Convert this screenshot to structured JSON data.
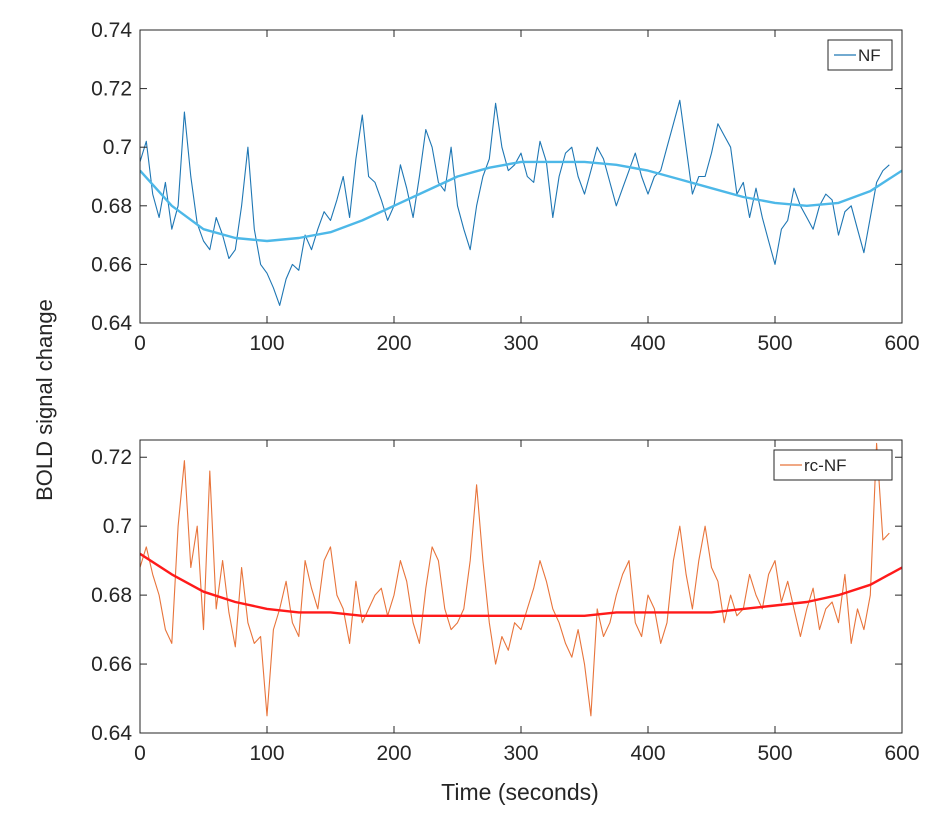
{
  "ylabel": "BOLD signal change",
  "xlabel": "Time (seconds)",
  "chart_data": [
    {
      "type": "line",
      "xlim": [
        0,
        600
      ],
      "ylim": [
        0.64,
        0.74
      ],
      "xticks": [
        0,
        100,
        200,
        300,
        400,
        500,
        600
      ],
      "xtick_labels": [
        "0",
        "100",
        "200",
        "300",
        "400",
        "500",
        "600"
      ],
      "yticks": [
        0.64,
        0.66,
        0.68,
        0.7,
        0.72,
        0.74
      ],
      "ytick_labels": [
        "0.64",
        "0.66",
        "0.68",
        "0.7",
        "0.72",
        "0.74"
      ],
      "legend": {
        "position": "top-right",
        "entries": [
          "NF"
        ]
      },
      "grid": false,
      "series": [
        {
          "name": "NF",
          "color": "#1f77b4",
          "x": [
            0,
            5,
            10,
            15,
            20,
            25,
            30,
            35,
            40,
            45,
            50,
            55,
            60,
            65,
            70,
            75,
            80,
            85,
            90,
            95,
            100,
            105,
            110,
            115,
            120,
            125,
            130,
            135,
            140,
            145,
            150,
            155,
            160,
            165,
            170,
            175,
            180,
            185,
            190,
            195,
            200,
            205,
            210,
            215,
            220,
            225,
            230,
            235,
            240,
            245,
            250,
            255,
            260,
            265,
            270,
            275,
            280,
            285,
            290,
            295,
            300,
            305,
            310,
            315,
            320,
            325,
            330,
            335,
            340,
            345,
            350,
            355,
            360,
            365,
            370,
            375,
            380,
            385,
            390,
            395,
            400,
            405,
            410,
            415,
            420,
            425,
            430,
            435,
            440,
            445,
            450,
            455,
            460,
            465,
            470,
            475,
            480,
            485,
            490,
            495,
            500,
            505,
            510,
            515,
            520,
            525,
            530,
            535,
            540,
            545,
            550,
            555,
            560,
            565,
            570,
            575,
            580,
            585,
            590
          ],
          "y": [
            0.695,
            0.702,
            0.684,
            0.676,
            0.688,
            0.672,
            0.68,
            0.712,
            0.69,
            0.674,
            0.668,
            0.665,
            0.676,
            0.67,
            0.662,
            0.665,
            0.68,
            0.7,
            0.672,
            0.66,
            0.657,
            0.652,
            0.646,
            0.655,
            0.66,
            0.658,
            0.67,
            0.665,
            0.672,
            0.678,
            0.675,
            0.682,
            0.69,
            0.676,
            0.696,
            0.711,
            0.69,
            0.688,
            0.682,
            0.675,
            0.68,
            0.694,
            0.686,
            0.676,
            0.69,
            0.706,
            0.7,
            0.688,
            0.685,
            0.7,
            0.68,
            0.672,
            0.665,
            0.68,
            0.69,
            0.696,
            0.715,
            0.7,
            0.692,
            0.694,
            0.698,
            0.69,
            0.688,
            0.702,
            0.695,
            0.676,
            0.69,
            0.698,
            0.7,
            0.69,
            0.684,
            0.692,
            0.7,
            0.696,
            0.688,
            0.68,
            0.686,
            0.692,
            0.698,
            0.69,
            0.684,
            0.69,
            0.692,
            0.7,
            0.708,
            0.716,
            0.7,
            0.684,
            0.69,
            0.69,
            0.698,
            0.708,
            0.704,
            0.7,
            0.684,
            0.688,
            0.676,
            0.686,
            0.676,
            0.668,
            0.66,
            0.672,
            0.675,
            0.686,
            0.68,
            0.676,
            0.672,
            0.68,
            0.684,
            0.682,
            0.67,
            0.678,
            0.68,
            0.672,
            0.664,
            0.676,
            0.688,
            0.692,
            0.694
          ]
        },
        {
          "name": "",
          "color": "#4db8e8",
          "x": [
            0,
            25,
            50,
            75,
            100,
            125,
            150,
            175,
            200,
            225,
            250,
            275,
            300,
            325,
            350,
            375,
            400,
            425,
            450,
            475,
            500,
            525,
            550,
            575,
            600
          ],
          "y": [
            0.692,
            0.68,
            0.672,
            0.669,
            0.668,
            0.669,
            0.671,
            0.675,
            0.68,
            0.685,
            0.69,
            0.693,
            0.695,
            0.695,
            0.695,
            0.694,
            0.692,
            0.689,
            0.686,
            0.683,
            0.681,
            0.68,
            0.681,
            0.685,
            0.692
          ]
        }
      ]
    },
    {
      "type": "line",
      "xlim": [
        0,
        600
      ],
      "ylim": [
        0.64,
        0.725
      ],
      "xticks": [
        0,
        100,
        200,
        300,
        400,
        500,
        600
      ],
      "xtick_labels": [
        "0",
        "100",
        "200",
        "300",
        "400",
        "500",
        "600"
      ],
      "yticks": [
        0.64,
        0.66,
        0.68,
        0.7,
        0.72
      ],
      "ytick_labels": [
        "0.64",
        "0.66",
        "0.68",
        "0.7",
        "0.72"
      ],
      "legend": {
        "position": "top-right",
        "entries": [
          "rc-NF"
        ]
      },
      "grid": false,
      "series": [
        {
          "name": "rc-NF",
          "color": "#e8743b",
          "x": [
            0,
            5,
            10,
            15,
            20,
            25,
            30,
            35,
            40,
            45,
            50,
            55,
            60,
            65,
            70,
            75,
            80,
            85,
            90,
            95,
            100,
            105,
            110,
            115,
            120,
            125,
            130,
            135,
            140,
            145,
            150,
            155,
            160,
            165,
            170,
            175,
            180,
            185,
            190,
            195,
            200,
            205,
            210,
            215,
            220,
            225,
            230,
            235,
            240,
            245,
            250,
            255,
            260,
            265,
            270,
            275,
            280,
            285,
            290,
            295,
            300,
            305,
            310,
            315,
            320,
            325,
            330,
            335,
            340,
            345,
            350,
            355,
            360,
            365,
            370,
            375,
            380,
            385,
            390,
            395,
            400,
            405,
            410,
            415,
            420,
            425,
            430,
            435,
            440,
            445,
            450,
            455,
            460,
            465,
            470,
            475,
            480,
            485,
            490,
            495,
            500,
            505,
            510,
            515,
            520,
            525,
            530,
            535,
            540,
            545,
            550,
            555,
            560,
            565,
            570,
            575,
            580,
            585,
            590
          ],
          "y": [
            0.688,
            0.694,
            0.686,
            0.68,
            0.67,
            0.666,
            0.7,
            0.719,
            0.688,
            0.7,
            0.67,
            0.716,
            0.676,
            0.69,
            0.675,
            0.665,
            0.688,
            0.672,
            0.666,
            0.668,
            0.645,
            0.67,
            0.676,
            0.684,
            0.672,
            0.668,
            0.69,
            0.682,
            0.676,
            0.69,
            0.694,
            0.68,
            0.676,
            0.666,
            0.684,
            0.672,
            0.676,
            0.68,
            0.682,
            0.674,
            0.68,
            0.69,
            0.684,
            0.672,
            0.666,
            0.682,
            0.694,
            0.69,
            0.676,
            0.67,
            0.672,
            0.676,
            0.69,
            0.712,
            0.69,
            0.672,
            0.66,
            0.668,
            0.664,
            0.672,
            0.67,
            0.676,
            0.682,
            0.69,
            0.684,
            0.676,
            0.672,
            0.666,
            0.662,
            0.67,
            0.66,
            0.645,
            0.676,
            0.668,
            0.672,
            0.68,
            0.686,
            0.69,
            0.672,
            0.668,
            0.68,
            0.676,
            0.666,
            0.672,
            0.69,
            0.7,
            0.686,
            0.676,
            0.69,
            0.7,
            0.688,
            0.684,
            0.672,
            0.68,
            0.674,
            0.676,
            0.686,
            0.68,
            0.676,
            0.686,
            0.69,
            0.678,
            0.684,
            0.676,
            0.668,
            0.676,
            0.682,
            0.67,
            0.676,
            0.678,
            0.672,
            0.686,
            0.666,
            0.676,
            0.67,
            0.68,
            0.724,
            0.696,
            0.698
          ]
        },
        {
          "name": "",
          "color": "#ff1a1a",
          "x": [
            0,
            25,
            50,
            75,
            100,
            125,
            150,
            175,
            200,
            225,
            250,
            275,
            300,
            325,
            350,
            375,
            400,
            425,
            450,
            475,
            500,
            525,
            550,
            575,
            600
          ],
          "y": [
            0.692,
            0.686,
            0.681,
            0.678,
            0.676,
            0.675,
            0.675,
            0.674,
            0.674,
            0.674,
            0.674,
            0.674,
            0.674,
            0.674,
            0.674,
            0.675,
            0.675,
            0.675,
            0.675,
            0.676,
            0.677,
            0.678,
            0.68,
            0.683,
            0.688
          ]
        }
      ]
    }
  ]
}
